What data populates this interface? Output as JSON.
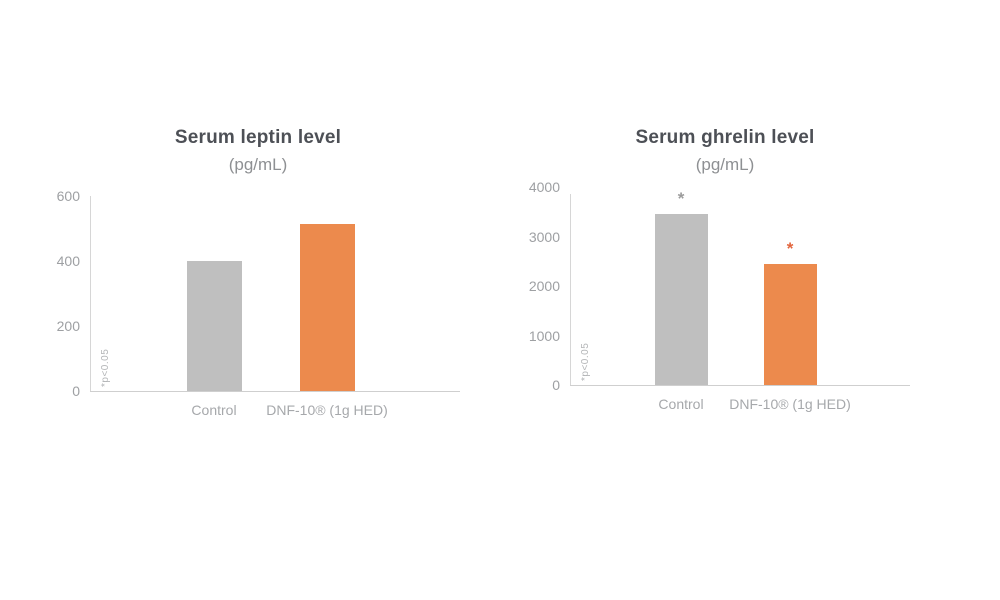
{
  "page": {
    "background": "#ffffff"
  },
  "chart_data": [
    {
      "type": "bar",
      "title": "Serum leptin level",
      "subtitle": "(pg/mL)",
      "note": "*p<0.05",
      "categories": [
        "Control",
        "DNF-10® (1g HED)"
      ],
      "values": [
        400,
        515
      ],
      "bar_colors": [
        "#bfbfbf",
        "#ec8a4d"
      ],
      "significance": [
        "",
        ""
      ],
      "significance_colors": [
        "",
        ""
      ],
      "ylim": [
        0,
        600
      ],
      "yticks": [
        0,
        200,
        400,
        600
      ],
      "grid": "off",
      "legend": "none"
    },
    {
      "type": "bar",
      "title": "Serum ghrelin level",
      "subtitle": "(pg/mL)",
      "note": "*p<0.05",
      "categories": [
        "Control",
        "DNF-10® (1g HED)"
      ],
      "values": [
        3450,
        2450
      ],
      "bar_colors": [
        "#bfbfbf",
        "#ec8a4d"
      ],
      "significance": [
        "*",
        "*"
      ],
      "significance_colors": [
        "#9b9b9b",
        "#e2643c"
      ],
      "ylim": [
        0,
        4000
      ],
      "yticks": [
        0,
        1000,
        2000,
        3000,
        4000
      ],
      "grid": "off",
      "legend": "none"
    }
  ]
}
